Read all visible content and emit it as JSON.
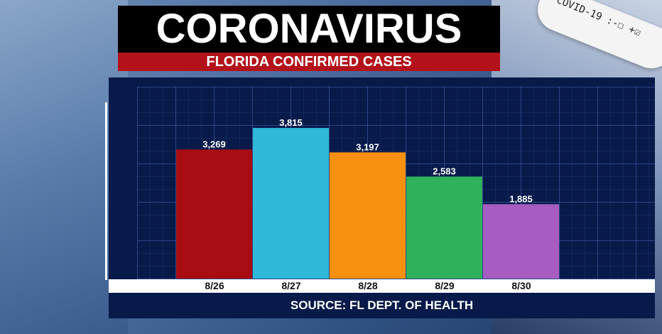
{
  "header": {
    "title": "CORONAVIRUS",
    "subtitle": "FLORIDA CONFIRMED CASES"
  },
  "background": {
    "tube_label": "COVID-19 :-☐ +☑"
  },
  "chart_data": {
    "type": "bar",
    "categories": [
      "8/26",
      "8/27",
      "8/28",
      "8/29",
      "8/30"
    ],
    "values": [
      3269,
      3815,
      3197,
      2583,
      1885
    ],
    "value_labels": [
      "3,269",
      "3,815",
      "3,197",
      "2,583",
      "1,885"
    ],
    "colors": [
      "#a80d12",
      "#2fb8d8",
      "#f78f0f",
      "#2fb05a",
      "#a65cc0"
    ],
    "ylim": [
      0,
      4500
    ],
    "grid": true,
    "legend": "none"
  },
  "footer": {
    "source": "SOURCE: FL DEPT. OF HEALTH"
  }
}
